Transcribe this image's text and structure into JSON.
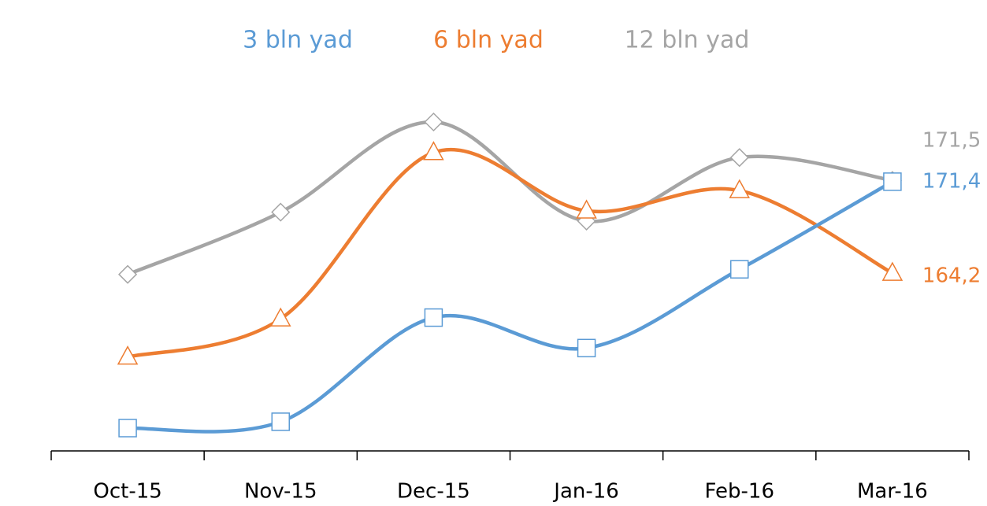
{
  "chart_data": {
    "type": "line",
    "categories": [
      "Oct-15",
      "Nov-15",
      "Dec-15",
      "Jan-16",
      "Feb-16",
      "Mar-16"
    ],
    "series": [
      {
        "name": "3 bln yad",
        "color": "#5b9bd5",
        "marker": "square",
        "values": [
          152.0,
          152.5,
          160.7,
          158.3,
          164.5,
          171.4
        ],
        "value_labels": [
          null,
          null,
          null,
          null,
          null,
          "171,4"
        ]
      },
      {
        "name": "6 bln yad",
        "color": "#ed7d31",
        "marker": "triangle",
        "values": [
          157.6,
          160.6,
          173.7,
          169.1,
          170.7,
          164.2
        ],
        "value_labels": [
          null,
          null,
          null,
          null,
          null,
          "164,2"
        ]
      },
      {
        "name": "12 bln yad",
        "color": "#a5a5a5",
        "marker": "diamond",
        "values": [
          164.1,
          169.0,
          176.1,
          168.3,
          173.3,
          171.5
        ],
        "value_labels": [
          null,
          null,
          null,
          null,
          null,
          "171,5"
        ]
      }
    ],
    "smooth": true
  }
}
